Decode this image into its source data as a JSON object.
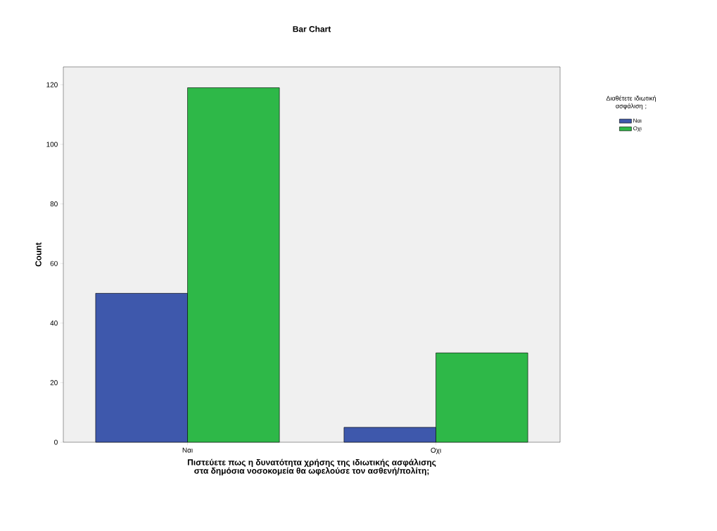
{
  "chart_data": {
    "type": "bar",
    "title": "Bar Chart",
    "xlabel": "Πιστεύετε πως η δυνατότητα χρήσης της ιδιωτικής ασφάλισης  στα δημόσια νοσοκομεία θα ωφελούσε τον ασθενή/πολίτη;",
    "ylabel": "Count",
    "legend_title": "Διαθέτετε ιδιωτική ασφάλιση ;",
    "categories": [
      "Ναι",
      "Οχι"
    ],
    "series": [
      {
        "name": "Ναι",
        "color": "#3e58ac",
        "values": [
          50,
          5
        ]
      },
      {
        "name": "Οχι",
        "color": "#2eb848",
        "values": [
          119,
          30
        ]
      }
    ],
    "ylim": [
      0,
      126
    ],
    "yticks": [
      0,
      20,
      40,
      60,
      80,
      100,
      120
    ],
    "grid": false,
    "legend": "top right"
  }
}
